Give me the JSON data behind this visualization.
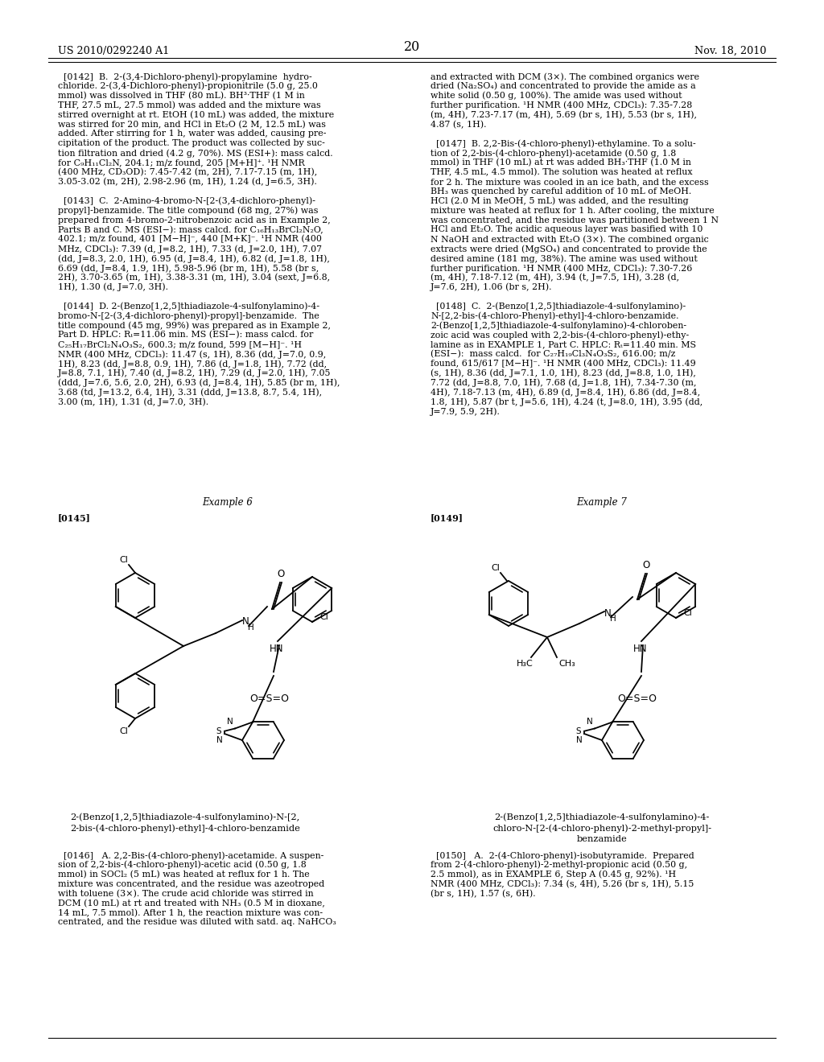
{
  "background_color": "#ffffff",
  "header_left": "US 2010/0292240 A1",
  "header_right": "Nov. 18, 2010",
  "page_number": "20"
}
